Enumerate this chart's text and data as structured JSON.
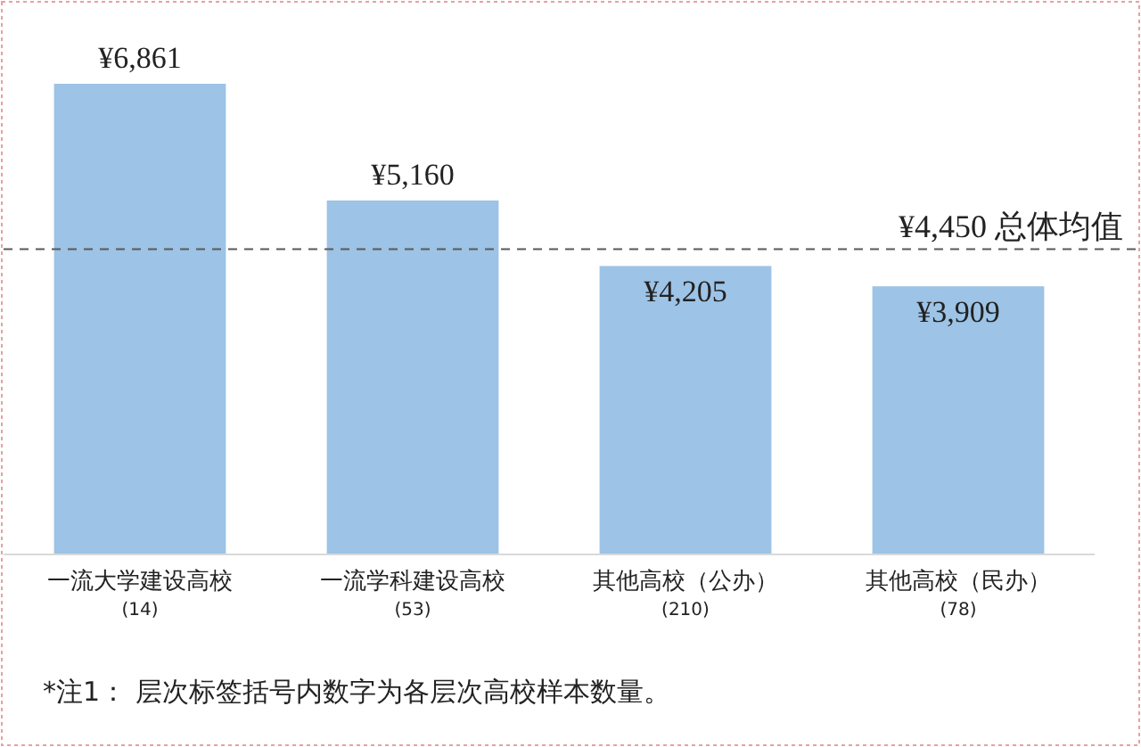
{
  "chart_data": {
    "type": "bar",
    "categories": [
      "一流大学建设高校\n(14)",
      "一流学科建设高校\n(53)",
      "其他高校（公办）\n(210)",
      "其他高校（民办）\n(78)"
    ],
    "values": [
      6861,
      5160,
      4205,
      3909
    ],
    "color": "#9dc3e6",
    "value_labels": [
      "¥6,861",
      "¥5,160",
      "¥4,205",
      "¥3,909"
    ],
    "ref_lines": [
      {
        "axis": "y",
        "value": 4450,
        "label": "¥4,450 总体均值",
        "color": "#595959",
        "line_style": "dashed"
      }
    ],
    "annotations": [
      "*注1： 层次标签括号内数字为各层次高校样本数量。"
    ]
  }
}
